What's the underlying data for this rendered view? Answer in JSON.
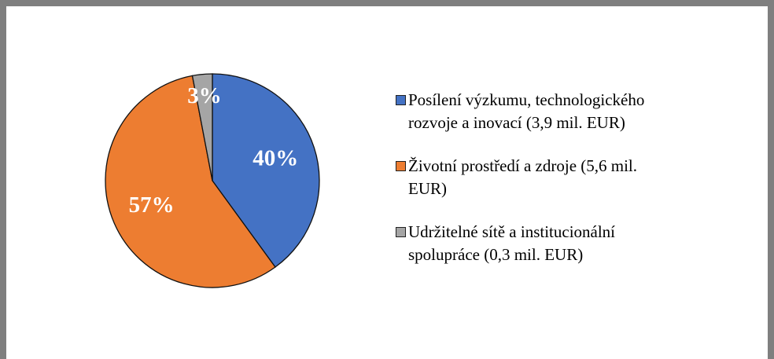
{
  "chart_data": {
    "type": "pie",
    "categories": [
      "Posílení výzkumu, technologického rozvoje a inovací (3,9 mil. EUR)",
      "Životní prostředí a zdroje (5,6 mil. EUR)",
      "Udržitelné sítě a institucionální spolupráce (0,3 mil. EUR)"
    ],
    "values": [
      40,
      57,
      3
    ],
    "value_labels": [
      "40%",
      "57%",
      "3%"
    ],
    "colors": [
      "#4472c4",
      "#ed7d31",
      "#a5a5a5"
    ],
    "legend": "right"
  }
}
